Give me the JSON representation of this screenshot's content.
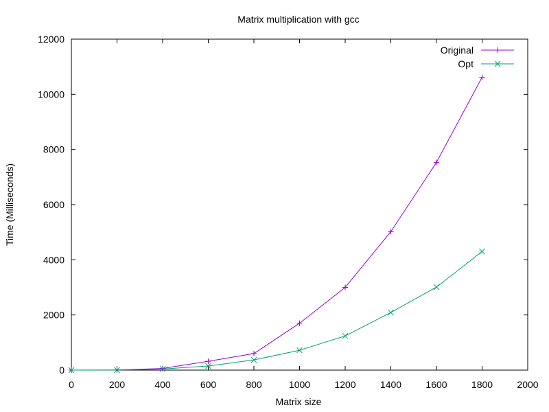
{
  "chart_data": {
    "type": "line",
    "title": "Matrix multiplication with gcc",
    "xlabel": "Matrix size",
    "ylabel": "Time (Milliseconds)",
    "xlim": [
      0,
      2000
    ],
    "ylim": [
      0,
      12000
    ],
    "xticks": [
      "0",
      "200",
      "400",
      "600",
      "800",
      "1000",
      "1200",
      "1400",
      "1600",
      "1800",
      "2000"
    ],
    "yticks": [
      "0",
      "2000",
      "4000",
      "6000",
      "8000",
      "10000",
      "12000"
    ],
    "grid": false,
    "legend_position": "top-right",
    "series": [
      {
        "name": "Original",
        "color": "#9400d3",
        "marker": "plus",
        "x": [
          0,
          200,
          400,
          600,
          800,
          1000,
          1200,
          1400,
          1600,
          1800
        ],
        "y": [
          0,
          5,
          60,
          320,
          600,
          1700,
          3000,
          5020,
          7530,
          10620
        ]
      },
      {
        "name": "Opt",
        "color": "#009e73",
        "marker": "cross",
        "x": [
          0,
          200,
          400,
          600,
          800,
          1000,
          1200,
          1400,
          1600,
          1800
        ],
        "y": [
          0,
          2,
          40,
          150,
          370,
          720,
          1240,
          2090,
          3010,
          4300
        ]
      }
    ]
  }
}
